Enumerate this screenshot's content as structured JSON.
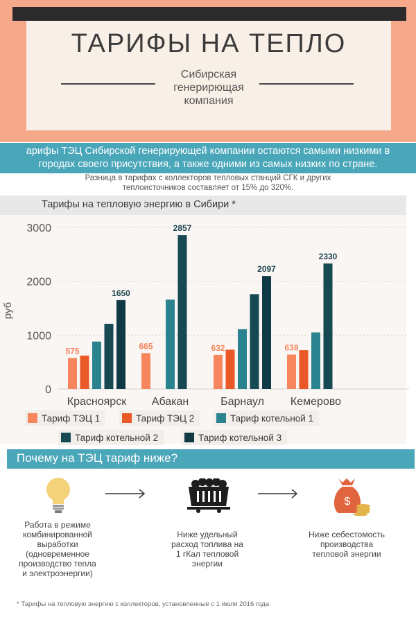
{
  "header": {
    "title": "ТАРИФЫ НА ТЕПЛО",
    "subtitle_lines": [
      "Сибирская",
      "генерирющая",
      "компания"
    ]
  },
  "banner": {
    "lines": [
      "арифы ТЭЦ Сибирской генерирующей компании остаются самыми низкими в",
      "городах своего присутствия, а также одними из самых низких по стране."
    ]
  },
  "note": {
    "lines": [
      "Разница в тарифах с коллекторов тепловых станций СГК и других",
      "теплоисточников составляет от 15% до 320%."
    ]
  },
  "colors": {
    "tec1": "#f7865e",
    "tec2": "#ea5a28",
    "kot1": "#2b8390",
    "kot2": "#174953",
    "kot3": "#0f3944",
    "teal_band": "#4aa6b9",
    "header_band": "#f6a98a"
  },
  "chart_data": {
    "type": "bar",
    "title": "Тарифы на тепловую энергию в Сибири *",
    "ylabel": "руб",
    "ylim": [
      0,
      3000
    ],
    "yticks": [
      0,
      1000,
      2000,
      3000
    ],
    "categories": [
      "Красноярск",
      "Абакан",
      "Барнаул",
      "Кемерово"
    ],
    "series": [
      {
        "name": "Тариф ТЭЦ 1",
        "values": [
          575,
          665,
          632,
          638
        ],
        "labels": [
          "575",
          "665",
          "632",
          "638"
        ]
      },
      {
        "name": "Тариф ТЭЦ 2",
        "values": [
          620,
          0,
          730,
          720
        ],
        "labels": []
      },
      {
        "name": "Тариф котельной 1",
        "values": [
          880,
          1660,
          1110,
          1050
        ],
        "labels": []
      },
      {
        "name": "Тариф котельной 2",
        "values": [
          1210,
          2857,
          1760,
          2330
        ],
        "labels": [
          "",
          "2857",
          "",
          "2330"
        ]
      },
      {
        "name": "Тариф котельной 3",
        "values": [
          1650,
          0,
          2097,
          0
        ],
        "labels": [
          "1650",
          "",
          "2097",
          ""
        ]
      }
    ],
    "legend_position": "bottom",
    "grid": true
  },
  "why": {
    "title": "Почему на ТЭЦ тариф ниже?",
    "steps": [
      {
        "icon": "light-bulb-icon",
        "lines": [
          "Работа в режиме",
          "комбинированной",
          "выработки",
          "(одновременное",
          "производство тепла",
          "и электроэнергии)"
        ]
      },
      {
        "icon": "coal-cart-icon",
        "lines": [
          "Ниже удельный",
          "расход топлива на",
          "1 гКал тепловой",
          "энергии"
        ]
      },
      {
        "icon": "money-bag-icon",
        "lines": [
          "Ниже себестомость",
          "производства",
          "тепловой энергии"
        ]
      }
    ]
  },
  "footnote": "* Тарифы  на тепловую энергию с коллекторов, установленные с 1 июля 2016 года"
}
